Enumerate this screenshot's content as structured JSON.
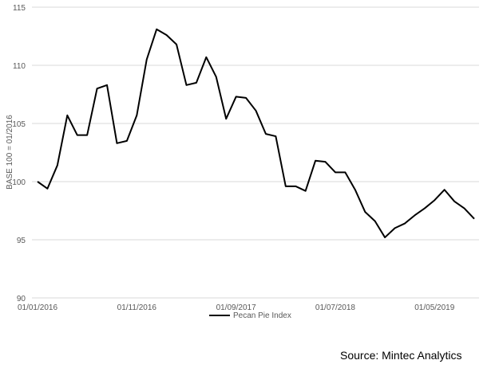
{
  "chart_data": {
    "type": "line",
    "xlabel": "",
    "ylabel": "BASE 100 = 01/2016",
    "ylim": [
      90,
      115
    ],
    "yticks": [
      90,
      95,
      100,
      105,
      110,
      115
    ],
    "grid": true,
    "legend_position": "bottom",
    "x_tick_labels": [
      "01/01/2016",
      "01/11/2016",
      "01/09/2017",
      "01/07/2018",
      "01/05/2019"
    ],
    "x_tick_months": [
      0,
      10,
      20,
      30,
      40
    ],
    "x_range_months": [
      0,
      44
    ],
    "series": [
      {
        "name": "Pecan Pie Index",
        "color": "#000000",
        "x": [
          "2016-01",
          "2016-02",
          "2016-03",
          "2016-04",
          "2016-05",
          "2016-06",
          "2016-07",
          "2016-08",
          "2016-09",
          "2016-10",
          "2016-11",
          "2016-12",
          "2017-01",
          "2017-02",
          "2017-03",
          "2017-04",
          "2017-05",
          "2017-06",
          "2017-07",
          "2017-08",
          "2017-09",
          "2017-10",
          "2017-11",
          "2017-12",
          "2018-01",
          "2018-02",
          "2018-03",
          "2018-04",
          "2018-05",
          "2018-06",
          "2018-07",
          "2018-08",
          "2018-09",
          "2018-10",
          "2018-11",
          "2018-12",
          "2019-01",
          "2019-02",
          "2019-03",
          "2019-04",
          "2019-05",
          "2019-06",
          "2019-07",
          "2019-08",
          "2019-09"
        ],
        "values": [
          100.0,
          99.4,
          101.4,
          105.7,
          104.0,
          104.0,
          108.0,
          108.3,
          103.3,
          103.5,
          105.7,
          110.5,
          113.1,
          112.6,
          111.8,
          108.3,
          108.5,
          110.7,
          109.0,
          105.4,
          107.3,
          107.2,
          106.1,
          104.1,
          103.9,
          99.6,
          99.6,
          99.2,
          101.8,
          101.7,
          100.8,
          100.8,
          99.3,
          97.4,
          96.6,
          95.2,
          96.0,
          96.4,
          97.1,
          97.7,
          98.4,
          99.3,
          98.3,
          97.7,
          96.8
        ]
      }
    ]
  },
  "source": "Source: Mintec Analytics"
}
